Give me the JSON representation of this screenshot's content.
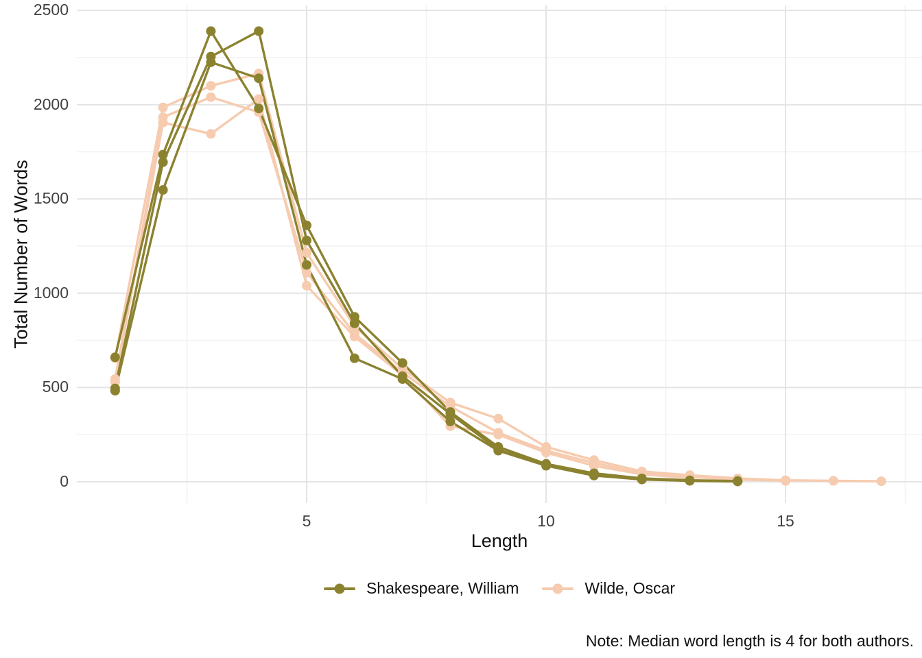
{
  "chart_data": {
    "type": "line",
    "title": "",
    "xlabel": "Length",
    "ylabel": "Total Number of Words",
    "x_ticks": [
      {
        "value": 5,
        "label": "5"
      },
      {
        "value": 10,
        "label": "10"
      },
      {
        "value": 15,
        "label": "15"
      }
    ],
    "y_ticks": [
      {
        "value": 0,
        "label": "0"
      },
      {
        "value": 500,
        "label": "500"
      },
      {
        "value": 1000,
        "label": "1000"
      },
      {
        "value": 1500,
        "label": "1500"
      },
      {
        "value": 2000,
        "label": "2000"
      },
      {
        "value": 2500,
        "label": "2500"
      }
    ],
    "x_minor_gridlines": [
      2.5,
      7.5,
      12.5,
      17.5
    ],
    "y_minor_gridlines": [
      250,
      750,
      1250,
      1750,
      2250
    ],
    "x_range": [
      0.2,
      17.85
    ],
    "y_range": [
      -113,
      2526
    ],
    "grid": "on",
    "legend_position": "bottom",
    "colors": {
      "major_grid": "#E4E4E4",
      "minor_grid": "#F2F2F2",
      "tick_text": "#404040"
    },
    "authors": {
      "Shakespeare, William": {
        "color": "#8B8230"
      },
      "Wilde, Oscar": {
        "color": "#F6CBAF"
      }
    },
    "series": [
      {
        "author": "Shakespeare, William",
        "x": [
          1,
          2,
          3,
          4,
          5,
          6,
          7,
          8,
          9,
          10,
          11,
          12,
          13,
          14
        ],
        "values": [
          660,
          1735,
          2390,
          1980,
          1360,
          875,
          630,
          370,
          185,
          95,
          45,
          18,
          8,
          4
        ]
      },
      {
        "author": "Shakespeare, William",
        "x": [
          1,
          2,
          3,
          4,
          5,
          6,
          7,
          8,
          9,
          10,
          11,
          12,
          13,
          14
        ],
        "values": [
          495,
          1695,
          2255,
          2390,
          1280,
          840,
          560,
          360,
          170,
          90,
          38,
          14,
          6,
          3
        ]
      },
      {
        "author": "Shakespeare, William",
        "x": [
          1,
          2,
          3,
          4,
          5,
          6,
          7,
          8,
          9,
          10,
          11,
          12,
          13,
          14
        ],
        "values": [
          483,
          1548,
          2225,
          2140,
          1150,
          655,
          545,
          320,
          165,
          85,
          33,
          12,
          5,
          2
        ]
      },
      {
        "author": "Wilde, Oscar",
        "x": [
          1,
          2,
          3,
          4,
          5,
          6,
          7,
          8,
          9,
          10,
          11,
          12,
          13,
          14,
          15,
          16,
          17
        ],
        "values": [
          655,
          1985,
          2100,
          2165,
          1215,
          825,
          600,
          420,
          335,
          185,
          115,
          55,
          35,
          18,
          8,
          5,
          3
        ]
      },
      {
        "author": "Wilde, Oscar",
        "x": [
          1,
          2,
          3,
          4,
          5,
          6,
          7,
          8,
          9,
          10,
          11,
          12,
          13,
          14,
          15
        ],
        "values": [
          545,
          1933,
          2040,
          1960,
          1110,
          785,
          580,
          400,
          260,
          165,
          100,
          45,
          25,
          12,
          5
        ]
      },
      {
        "author": "Wilde, Oscar",
        "x": [
          1,
          2,
          3,
          4,
          5,
          6,
          7,
          8,
          9,
          10,
          11,
          12,
          13
        ],
        "values": [
          530,
          1905,
          1845,
          2030,
          1040,
          770,
          565,
          295,
          250,
          155,
          85,
          40,
          20
        ]
      }
    ]
  },
  "axes": {
    "x_title": "Length",
    "y_title": "Total Number of Words"
  },
  "legend": {
    "items": [
      {
        "label": "Shakespeare, William",
        "color": "#8B8230"
      },
      {
        "label": "Wilde, Oscar",
        "color": "#F6CBAF"
      }
    ]
  },
  "caption": "Note: Median word length is 4 for both authors."
}
